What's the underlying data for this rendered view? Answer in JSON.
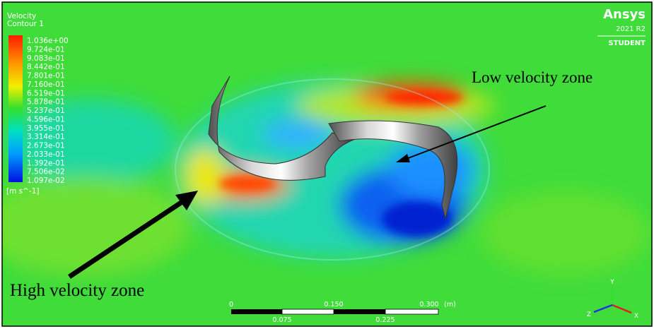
{
  "legend": {
    "title": [
      "Velocity",
      "Contour 1"
    ],
    "labels": [
      "1.036e+00",
      "9.724e-01",
      "9.083e-01",
      "8.442e-01",
      "7.801e-01",
      "7.160e-01",
      "6.519e-01",
      "5.878e-01",
      "5.237e-01",
      "4.596e-01",
      "3.955e-01",
      "3.314e-01",
      "2.673e-01",
      "2.033e-01",
      "1.392e-01",
      "7.506e-02",
      "1.097e-02"
    ],
    "unit": "[m s^-1]"
  },
  "logo": {
    "brand": "Ansys",
    "version": "2021 R2",
    "edition": "STUDENT"
  },
  "annotations": {
    "low": "Low velocity zone",
    "high": "High velocity zone"
  },
  "scale_bar": {
    "top": [
      "0",
      "0.150",
      "0.300"
    ],
    "unit": "(m)",
    "bottom": [
      "0.075",
      "0.225"
    ]
  },
  "triad": {
    "x": "X",
    "y": "Y",
    "z": "Z"
  }
}
